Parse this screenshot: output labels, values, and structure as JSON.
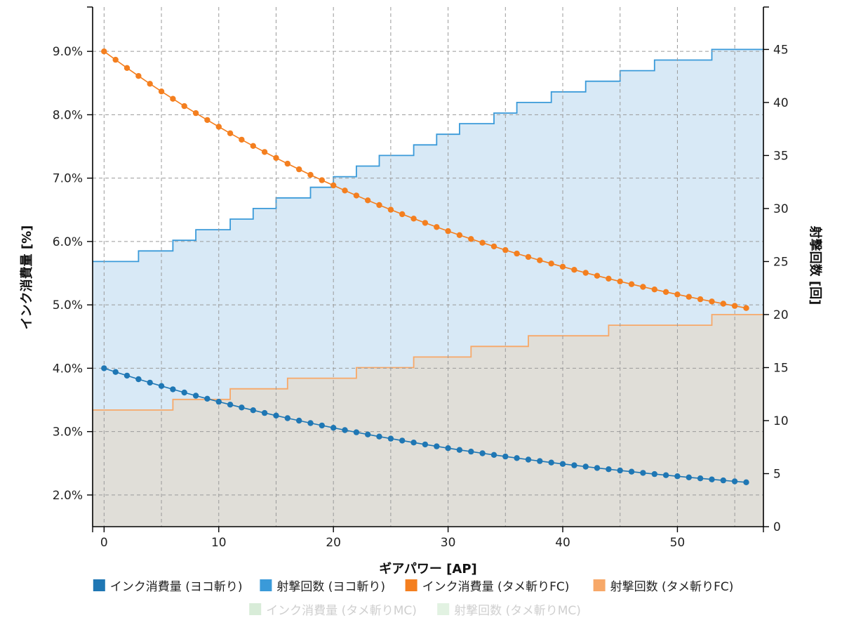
{
  "chart_data": {
    "type": "line",
    "xlabel": "ギアパワー [AP]",
    "ylabel_left": "インク消費量 [%]",
    "ylabel_right": "射撃回数 [回]",
    "x_range": [
      -1,
      57.5
    ],
    "y_left_range": [
      1.5,
      9.7
    ],
    "y_right_range": [
      0,
      49
    ],
    "x_ticks": [
      0,
      10,
      20,
      30,
      40,
      50
    ],
    "x_tick_labels": [
      "0",
      "10",
      "20",
      "30",
      "40",
      "50"
    ],
    "y_left_ticks": [
      2,
      3,
      4,
      5,
      6,
      7,
      8,
      9
    ],
    "y_left_tick_labels": [
      "2.0%",
      "3.0%",
      "4.0%",
      "5.0%",
      "6.0%",
      "7.0%",
      "8.0%",
      "9.0%"
    ],
    "y_right_ticks": [
      0,
      5,
      10,
      15,
      20,
      25,
      30,
      35,
      40,
      45
    ],
    "y_right_tick_labels": [
      "0",
      "5",
      "10",
      "15",
      "20",
      "25",
      "30",
      "35",
      "40",
      "45"
    ],
    "x_grid": [
      0,
      5,
      10,
      15,
      20,
      25,
      30,
      35,
      40,
      45,
      50,
      55
    ],
    "grid": true,
    "series": [
      {
        "name": "インク消費量 (ヨコ斬り)",
        "axis": "left",
        "kind": "line-markers",
        "color": "#1f77b4",
        "x_start": 0,
        "x_step": 1,
        "start": 4.0,
        "end": 2.2,
        "curve": 1.4,
        "enabled": true
      },
      {
        "name": "射撃回数 (ヨコ斬り)",
        "axis": "right",
        "kind": "step-area",
        "color": "#3a9ad9",
        "fill": "#d8e9f6",
        "steps": [
          [
            -1,
            25
          ],
          [
            3,
            26
          ],
          [
            6,
            27
          ],
          [
            8,
            28
          ],
          [
            11,
            29
          ],
          [
            13,
            30
          ],
          [
            15,
            31
          ],
          [
            18,
            32
          ],
          [
            20,
            33
          ],
          [
            22,
            34
          ],
          [
            24,
            35
          ],
          [
            27,
            36
          ],
          [
            29,
            37
          ],
          [
            31,
            38
          ],
          [
            34,
            39
          ],
          [
            36,
            40
          ],
          [
            39,
            41
          ],
          [
            42,
            42
          ],
          [
            45,
            43
          ],
          [
            48,
            44
          ],
          [
            53,
            45
          ]
        ],
        "x_end": 57.5,
        "enabled": true
      },
      {
        "name": "インク消費量 (タメ斬りFC)",
        "axis": "left",
        "kind": "line-markers",
        "color": "#f47f1f",
        "x_start": 0,
        "x_step": 1,
        "start": 9.0,
        "end": 4.95,
        "curve": 1.4,
        "enabled": true
      },
      {
        "name": "射撃回数 (タメ斬りFC)",
        "axis": "right",
        "kind": "step-area",
        "color": "#f7a868",
        "fill": "#e0ded8",
        "steps": [
          [
            -1,
            11
          ],
          [
            6,
            12
          ],
          [
            11,
            13
          ],
          [
            16,
            14
          ],
          [
            22,
            15
          ],
          [
            27,
            16
          ],
          [
            32,
            17
          ],
          [
            37,
            18
          ],
          [
            44,
            19
          ],
          [
            53,
            20
          ]
        ],
        "x_end": 57.5,
        "enabled": true
      },
      {
        "name": "インク消費量 (タメ斬りMC)",
        "axis": "left",
        "color": "#d8ecd8",
        "enabled": false
      },
      {
        "name": "射撃回数 (タメ斬りMC)",
        "axis": "right",
        "color": "#e2f2e2",
        "enabled": false
      }
    ]
  }
}
